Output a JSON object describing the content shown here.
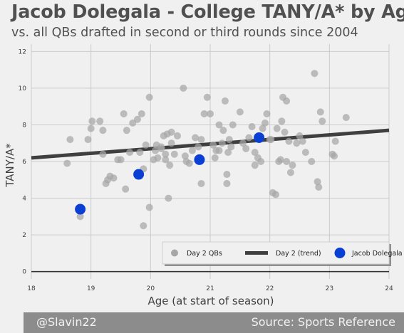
{
  "chart_data": {
    "type": "scatter",
    "title": "Jacob Dolegala - College TANY/A* by Age",
    "subtitle": "vs. all QBs drafted in second or third rounds since 2004",
    "xlabel": "Age (at start of season)",
    "ylabel": "TANY/A*",
    "xlim": [
      18,
      24
    ],
    "ylim": [
      -0.4,
      12.4
    ],
    "xticks": [
      "18",
      "19",
      "20",
      "21",
      "22",
      "23",
      "24"
    ],
    "yticks": [
      "0",
      "2",
      "4",
      "6",
      "8",
      "10",
      "12"
    ],
    "grid": true,
    "legend_position": "bottom-right",
    "series": [
      {
        "name": "Day 2 QBs",
        "color": "#a6a6a6",
        "points": [
          [
            18.6,
            5.9
          ],
          [
            18.65,
            7.2
          ],
          [
            18.82,
            3.0
          ],
          [
            18.95,
            7.2
          ],
          [
            19.0,
            7.8
          ],
          [
            19.02,
            8.2
          ],
          [
            19.15,
            8.2
          ],
          [
            19.2,
            7.7
          ],
          [
            19.2,
            6.4
          ],
          [
            19.25,
            4.8
          ],
          [
            19.28,
            5.0
          ],
          [
            19.32,
            5.2
          ],
          [
            19.38,
            5.1
          ],
          [
            19.45,
            6.1
          ],
          [
            19.5,
            6.1
          ],
          [
            19.55,
            8.6
          ],
          [
            19.58,
            4.5
          ],
          [
            19.6,
            7.7
          ],
          [
            19.65,
            6.5
          ],
          [
            19.7,
            8.1
          ],
          [
            19.78,
            8.3
          ],
          [
            19.82,
            6.5
          ],
          [
            19.85,
            8.6
          ],
          [
            19.88,
            5.6
          ],
          [
            19.88,
            2.5
          ],
          [
            19.92,
            6.9
          ],
          [
            19.98,
            3.5
          ],
          [
            19.98,
            9.5
          ],
          [
            20.05,
            6.1
          ],
          [
            20.08,
            6.6
          ],
          [
            20.1,
            6.9
          ],
          [
            20.12,
            6.2
          ],
          [
            20.18,
            6.7
          ],
          [
            20.18,
            6.8
          ],
          [
            20.22,
            7.4
          ],
          [
            20.25,
            6.4
          ],
          [
            20.25,
            6.1
          ],
          [
            20.28,
            7.5
          ],
          [
            20.3,
            4.0
          ],
          [
            20.32,
            5.8
          ],
          [
            20.35,
            7.6
          ],
          [
            20.35,
            7.0
          ],
          [
            20.4,
            6.4
          ],
          [
            20.45,
            7.4
          ],
          [
            20.55,
            10.0
          ],
          [
            20.58,
            6.3
          ],
          [
            20.6,
            6.0
          ],
          [
            20.65,
            5.9
          ],
          [
            20.7,
            6.6
          ],
          [
            20.75,
            7.3
          ],
          [
            20.8,
            6.8
          ],
          [
            20.85,
            4.8
          ],
          [
            20.85,
            7.2
          ],
          [
            20.9,
            8.6
          ],
          [
            20.95,
            9.5
          ],
          [
            21.0,
            8.6
          ],
          [
            21.05,
            6.9
          ],
          [
            21.08,
            6.2
          ],
          [
            21.1,
            6.6
          ],
          [
            21.15,
            6.6
          ],
          [
            21.15,
            8.0
          ],
          [
            21.2,
            7.0
          ],
          [
            21.22,
            7.7
          ],
          [
            21.25,
            9.3
          ],
          [
            21.28,
            4.8
          ],
          [
            21.28,
            5.3
          ],
          [
            21.3,
            6.5
          ],
          [
            21.32,
            7.2
          ],
          [
            21.35,
            6.8
          ],
          [
            21.38,
            8.0
          ],
          [
            21.5,
            8.7
          ],
          [
            21.55,
            7.0
          ],
          [
            21.6,
            6.7
          ],
          [
            21.65,
            7.3
          ],
          [
            21.7,
            7.9
          ],
          [
            21.75,
            5.8
          ],
          [
            21.75,
            6.5
          ],
          [
            21.8,
            6.2
          ],
          [
            21.85,
            6.0
          ],
          [
            21.88,
            7.8
          ],
          [
            21.92,
            8.1
          ],
          [
            21.95,
            8.6
          ],
          [
            22.0,
            7.2
          ],
          [
            22.02,
            7.2
          ],
          [
            22.05,
            4.3
          ],
          [
            22.1,
            4.2
          ],
          [
            22.12,
            7.8
          ],
          [
            22.15,
            6.0
          ],
          [
            22.18,
            6.1
          ],
          [
            22.2,
            8.2
          ],
          [
            22.22,
            9.5
          ],
          [
            22.25,
            7.6
          ],
          [
            22.28,
            6.0
          ],
          [
            22.28,
            9.3
          ],
          [
            22.32,
            7.1
          ],
          [
            22.35,
            5.4
          ],
          [
            22.38,
            5.8
          ],
          [
            22.45,
            7.0
          ],
          [
            22.5,
            7.4
          ],
          [
            22.55,
            7.1
          ],
          [
            22.6,
            6.5
          ],
          [
            22.7,
            6.0
          ],
          [
            22.75,
            10.8
          ],
          [
            22.8,
            4.9
          ],
          [
            22.82,
            4.6
          ],
          [
            22.85,
            8.7
          ],
          [
            22.88,
            8.2
          ],
          [
            23.05,
            6.4
          ],
          [
            23.08,
            6.3
          ],
          [
            23.1,
            7.1
          ],
          [
            23.28,
            8.4
          ]
        ]
      },
      {
        "name": "Day 2 (trend)",
        "color": "#3f3f3f",
        "type": "line",
        "points": [
          [
            18,
            6.2
          ],
          [
            24,
            7.7
          ]
        ]
      },
      {
        "name": "Jacob Dolegala",
        "color": "#0a3fd4",
        "points": [
          [
            18.82,
            3.4
          ],
          [
            19.8,
            5.3
          ],
          [
            20.82,
            6.1
          ],
          [
            21.82,
            7.3
          ]
        ]
      }
    ]
  },
  "footer": {
    "left": "@Slavin22",
    "right": "Source: Sports Reference"
  }
}
